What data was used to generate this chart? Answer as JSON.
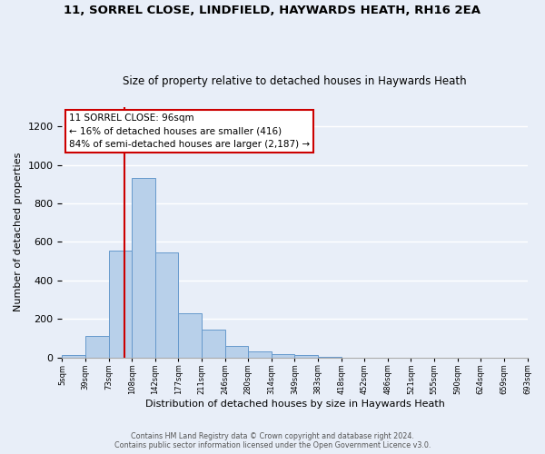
{
  "title1": "11, SORREL CLOSE, LINDFIELD, HAYWARDS HEATH, RH16 2EA",
  "title2": "Size of property relative to detached houses in Haywards Heath",
  "xlabel": "Distribution of detached houses by size in Haywards Heath",
  "ylabel": "Number of detached properties",
  "bin_labels": [
    "5sqm",
    "39sqm",
    "73sqm",
    "108sqm",
    "142sqm",
    "177sqm",
    "211sqm",
    "246sqm",
    "280sqm",
    "314sqm",
    "349sqm",
    "383sqm",
    "418sqm",
    "452sqm",
    "486sqm",
    "521sqm",
    "555sqm",
    "590sqm",
    "624sqm",
    "659sqm",
    "693sqm"
  ],
  "bar_heights": [
    10,
    110,
    555,
    930,
    545,
    230,
    145,
    60,
    30,
    15,
    10,
    3,
    0,
    0,
    0,
    0,
    0,
    0,
    0,
    0
  ],
  "bar_color": "#b8d0ea",
  "bar_edge_color": "#6699cc",
  "background_color": "#e8eef8",
  "grid_color": "#ffffff",
  "vline_color": "#cc0000",
  "annotation_text": "11 SORREL CLOSE: 96sqm\n← 16% of detached houses are smaller (416)\n84% of semi-detached houses are larger (2,187) →",
  "annotation_box_color": "white",
  "annotation_box_edge": "#cc0000",
  "ylim": [
    0,
    1300
  ],
  "yticks": [
    0,
    200,
    400,
    600,
    800,
    1000,
    1200
  ],
  "vline_pos": 2.66,
  "footnote": "Contains HM Land Registry data © Crown copyright and database right 2024.\nContains public sector information licensed under the Open Government Licence v3.0."
}
